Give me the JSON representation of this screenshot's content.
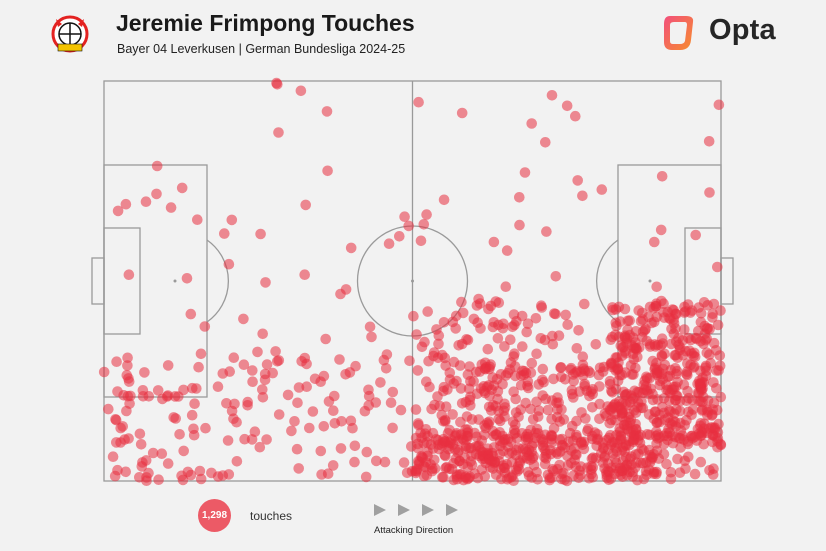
{
  "header": {
    "title": "Jeremie Frimpong Touches",
    "subtitle": "Bayer 04 Leverkusen | German Bundesliga 2024-25",
    "brand": "Opta",
    "crest_icon": "bayer-leverkusen-crest-icon",
    "crest_text_top": "BAYER",
    "crest_text_bottom": "LEVERKUSEN"
  },
  "legend": {
    "total": "1,298",
    "total_label": "touches",
    "direction_label": "Attacking Direction"
  },
  "colors": {
    "background": "#f2f2f2",
    "marker": "#e8303f",
    "pitch_lines": "#9a9a9a",
    "brand_gradient": [
      "#f24f7c",
      "#f78d2d"
    ]
  },
  "chart_data": {
    "type": "scatter",
    "title": "Jeremie Frimpong Touches",
    "total_touches": 1298,
    "xlim": [
      0,
      100
    ],
    "ylim": [
      0,
      100
    ],
    "pitch": "full",
    "attacking_direction": "left-to-right",
    "density_regions": [
      {
        "x": [
          0,
          100
        ],
        "y": [
          0,
          100
        ],
        "count": 120,
        "seed": 11
      },
      {
        "x": [
          0,
          50
        ],
        "y": [
          0,
          32
        ],
        "count": 140,
        "seed": 23
      },
      {
        "x": [
          50,
          100
        ],
        "y": [
          0,
          45
        ],
        "count": 270,
        "seed": 37
      },
      {
        "x": [
          50,
          90
        ],
        "y": [
          0,
          12
        ],
        "count": 300,
        "seed": 41
      },
      {
        "x": [
          82,
          100
        ],
        "y": [
          8,
          45
        ],
        "count": 250,
        "seed": 53
      },
      {
        "x": [
          55,
          100
        ],
        "y": [
          10,
          30
        ],
        "count": 218,
        "seed": 67
      }
    ]
  }
}
